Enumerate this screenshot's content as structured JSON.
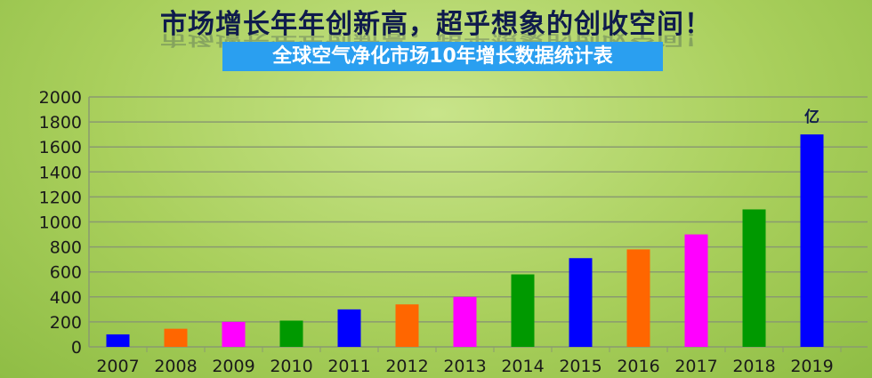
{
  "headline": "市场增长年年创新高，超乎想象的创收空间！",
  "chart_data": {
    "type": "bar",
    "title": "全球空气净化市场10年增长数据统计表",
    "unit_label": "亿",
    "categories": [
      "2007",
      "2008",
      "2009",
      "2010",
      "2011",
      "2012",
      "2013",
      "2014",
      "2015",
      "2016",
      "2017",
      "2018",
      "2019"
    ],
    "values": [
      100,
      145,
      200,
      210,
      300,
      340,
      400,
      580,
      710,
      780,
      900,
      1100,
      1700
    ],
    "colors": [
      "#0000ff",
      "#ff6600",
      "#ff00ff",
      "#009900",
      "#0000ff",
      "#ff6600",
      "#ff00ff",
      "#009900",
      "#0000ff",
      "#ff6600",
      "#ff00ff",
      "#009900",
      "#0000ff"
    ],
    "ylim": [
      0,
      2000
    ],
    "yticks": [
      "0",
      "200",
      "400",
      "600",
      "800",
      "1000",
      "1200",
      "1400",
      "1600",
      "1800",
      "2000"
    ],
    "grid": true
  }
}
